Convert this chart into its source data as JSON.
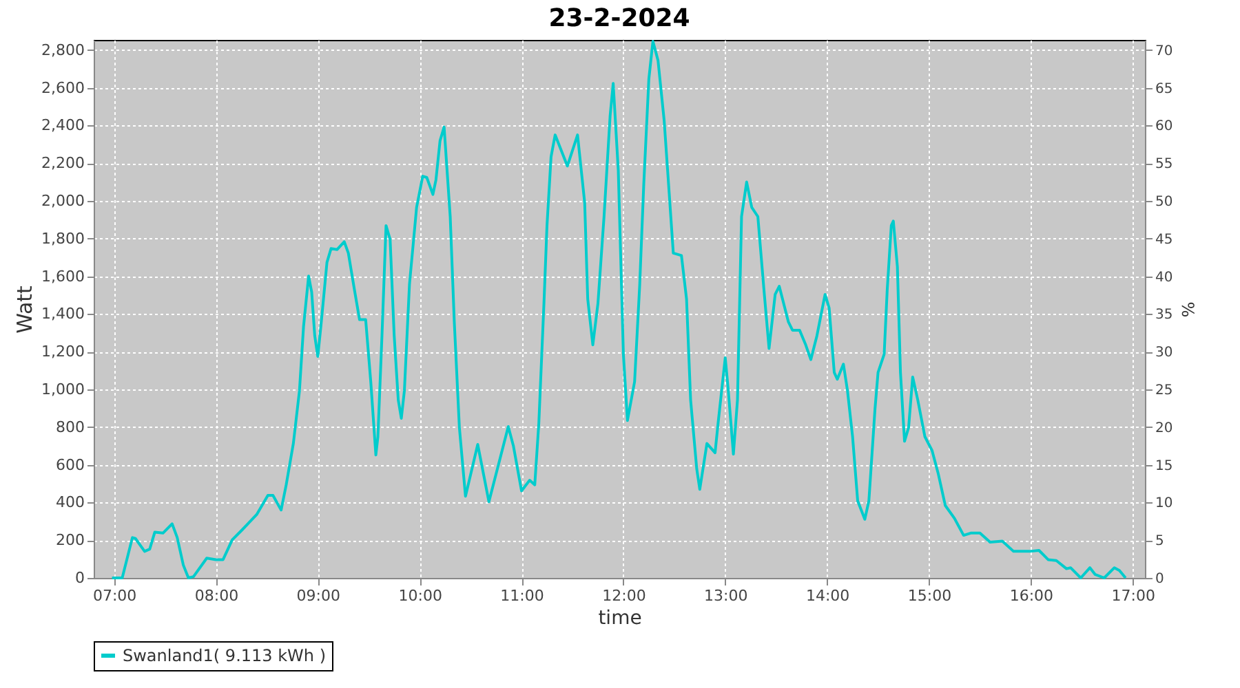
{
  "chart_data": {
    "type": "line",
    "title": "23-2-2024",
    "xlabel": "time",
    "ylabel": "Watt",
    "y2label": "%",
    "x": [
      6.98,
      7.08,
      7.18,
      7.21,
      7.3,
      7.35,
      7.4,
      7.48,
      7.57,
      7.62,
      7.68,
      7.73,
      7.78,
      7.91,
      8.0,
      8.07,
      8.16,
      8.25,
      8.4,
      8.51,
      8.56,
      8.64,
      8.69,
      8.76,
      8.82,
      8.86,
      8.91,
      8.94,
      8.97,
      9.0,
      9.03,
      9.09,
      9.13,
      9.19,
      9.26,
      9.3,
      9.36,
      9.41,
      9.47,
      9.52,
      9.57,
      9.59,
      9.63,
      9.67,
      9.71,
      9.75,
      9.79,
      9.82,
      9.85,
      9.9,
      9.97,
      10.03,
      10.07,
      10.13,
      10.16,
      10.2,
      10.24,
      10.3,
      10.34,
      10.39,
      10.45,
      10.57,
      10.68,
      10.87,
      10.92,
      11.0,
      11.08,
      11.13,
      11.17,
      11.22,
      11.25,
      11.29,
      11.33,
      11.45,
      11.55,
      11.62,
      11.65,
      11.7,
      11.75,
      11.81,
      11.87,
      11.9,
      11.95,
      12.0,
      12.04,
      12.11,
      12.16,
      12.2,
      12.25,
      12.29,
      12.34,
      12.4,
      12.45,
      12.49,
      12.57,
      12.62,
      12.66,
      12.72,
      12.75,
      12.82,
      12.9,
      12.93,
      13.0,
      13.03,
      13.08,
      13.12,
      13.16,
      13.21,
      13.26,
      13.32,
      13.38,
      13.43,
      13.49,
      13.53,
      13.62,
      13.66,
      13.73,
      13.79,
      13.84,
      13.9,
      13.98,
      14.02,
      14.07,
      14.1,
      14.16,
      14.2,
      14.25,
      14.3,
      14.37,
      14.41,
      14.47,
      14.5,
      14.56,
      14.59,
      14.63,
      14.65,
      14.69,
      14.72,
      14.76,
      14.8,
      14.84,
      14.89,
      14.96,
      15.03,
      15.09,
      15.16,
      15.25,
      15.34,
      15.41,
      15.5,
      15.6,
      15.72,
      15.83,
      15.99,
      16.08,
      16.17,
      16.25,
      16.35,
      16.39,
      16.49,
      16.58,
      16.63,
      16.72,
      16.82,
      16.87,
      16.93
    ],
    "series": [
      {
        "name": "Swanland1( 9.113 kWh )",
        "color": "#00cccc",
        "values": [
          0,
          0,
          214,
          209,
          141,
          153,
          243,
          238,
          287,
          214,
          68,
          0,
          7,
          105,
          97,
          97,
          202,
          251,
          336,
          438,
          438,
          360,
          494,
          713,
          993,
          1333,
          1601,
          1516,
          1285,
          1175,
          1333,
          1674,
          1747,
          1742,
          1783,
          1723,
          1528,
          1370,
          1370,
          1041,
          652,
          749,
          1285,
          1869,
          1796,
          1285,
          944,
          847,
          993,
          1557,
          1966,
          2131,
          2124,
          2034,
          2112,
          2319,
          2392,
          1917,
          1358,
          798,
          433,
          708,
          404,
          803,
          701,
          462,
          518,
          494,
          822,
          1455,
          1869,
          2234,
          2350,
          2185,
          2350,
          1990,
          1479,
          1236,
          1455,
          1917,
          2453,
          2623,
          2161,
          1187,
          835,
          1041,
          1552,
          2088,
          2647,
          2847,
          2745,
          2428,
          2039,
          1723,
          1710,
          1479,
          944,
          579,
          470,
          713,
          664,
          822,
          1168,
          993,
          657,
          944,
          1917,
          2100,
          1966,
          1917,
          1528,
          1217,
          1504,
          1547,
          1358,
          1314,
          1314,
          1236,
          1158,
          1285,
          1504,
          1431,
          1090,
          1054,
          1134,
          993,
          749,
          409,
          311,
          409,
          896,
          1090,
          1187,
          1528,
          1869,
          1893,
          1650,
          1090,
          725,
          798,
          1066,
          944,
          749,
          676,
          555,
          384,
          316,
          226,
          238,
          238,
          190,
          195,
          141,
          141,
          146,
          97,
          92,
          49,
          54,
          0,
          54,
          19,
          0,
          54,
          39,
          0
        ]
      }
    ],
    "xlim": [
      6.8,
      17.12
    ],
    "xticks": [
      {
        "value": 7,
        "label": "07:00"
      },
      {
        "value": 8,
        "label": "08:00"
      },
      {
        "value": 9,
        "label": "09:00"
      },
      {
        "value": 10,
        "label": "10:00"
      },
      {
        "value": 11,
        "label": "11:00"
      },
      {
        "value": 12,
        "label": "12:00"
      },
      {
        "value": 13,
        "label": "13:00"
      },
      {
        "value": 14,
        "label": "14:00"
      },
      {
        "value": 15,
        "label": "15:00"
      },
      {
        "value": 16,
        "label": "16:00"
      },
      {
        "value": 17,
        "label": "17:00"
      }
    ],
    "ylim": [
      0,
      2854
    ],
    "yticks": [
      0,
      200,
      400,
      600,
      800,
      {
        "value": 1000,
        "label": "1,000"
      },
      {
        "value": 1200,
        "label": "1,200"
      },
      {
        "value": 1400,
        "label": "1,400"
      },
      {
        "value": 1600,
        "label": "1,600"
      },
      {
        "value": 1800,
        "label": "1,800"
      },
      {
        "value": 2000,
        "label": "2,000"
      },
      {
        "value": 2200,
        "label": "2,200"
      },
      {
        "value": 2400,
        "label": "2,400"
      },
      {
        "value": 2600,
        "label": "2,600"
      },
      {
        "value": 2800,
        "label": "2,800"
      }
    ],
    "y2lim": [
      0,
      71.35
    ],
    "y2ticks": [
      0,
      5,
      10,
      15,
      20,
      25,
      30,
      35,
      40,
      45,
      50,
      55,
      60,
      65,
      70
    ],
    "grid": true,
    "legend": "bottom",
    "marker": "none",
    "line_style": "solid"
  }
}
